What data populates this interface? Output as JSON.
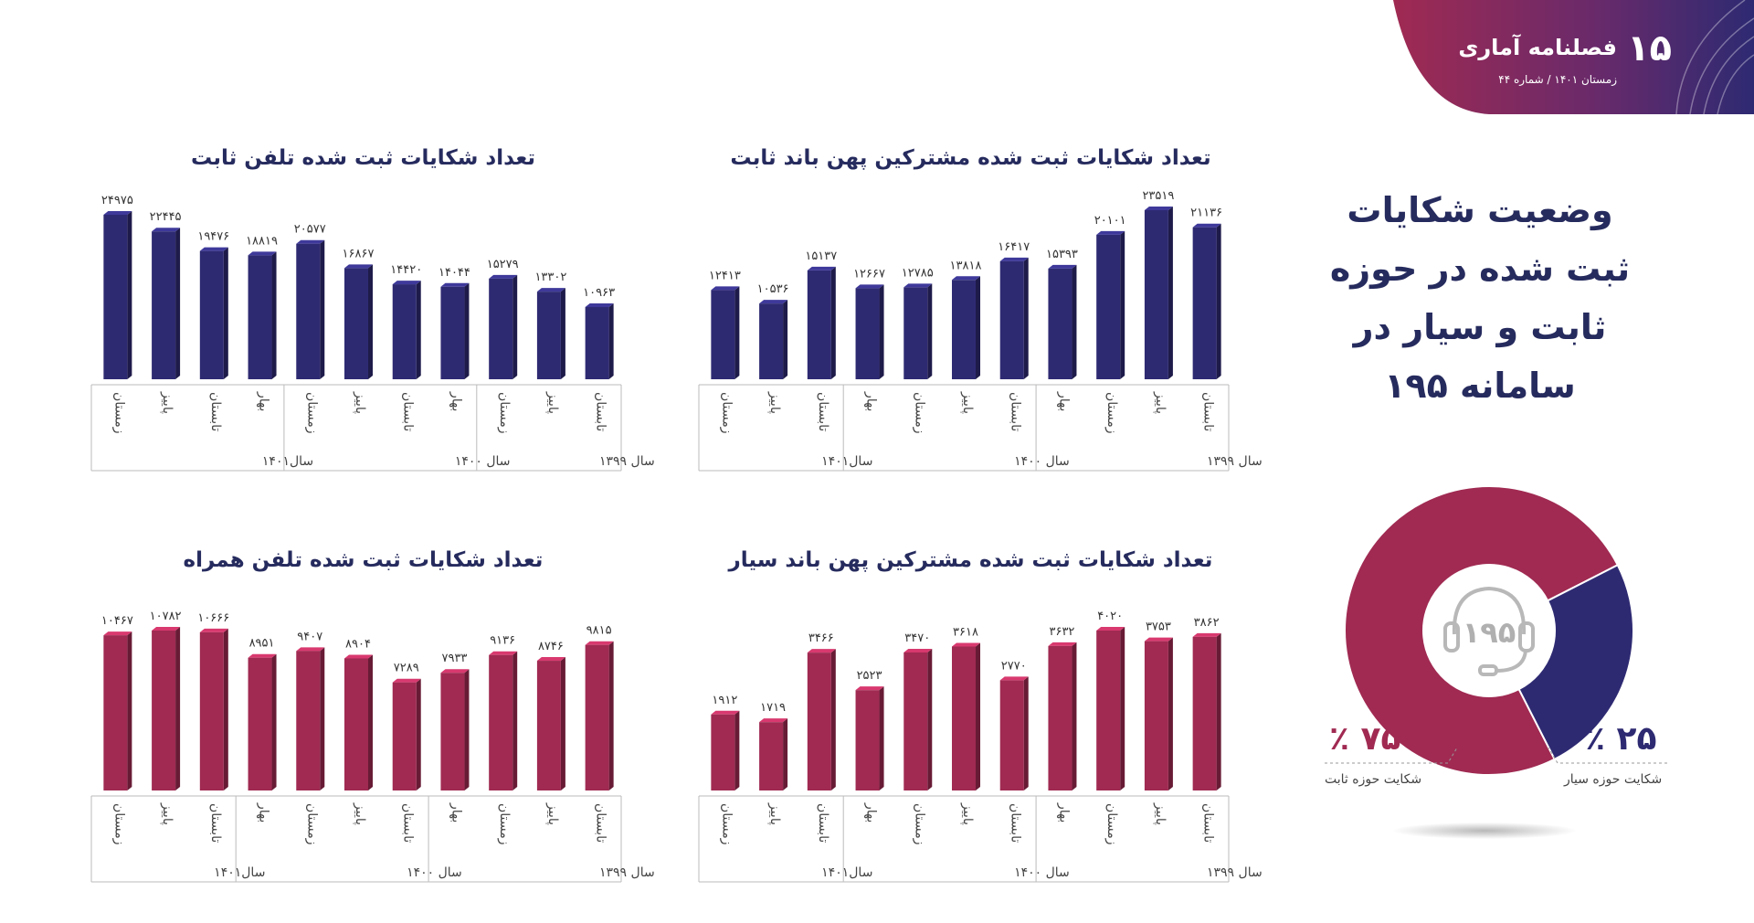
{
  "header": {
    "page_number": "۱۵",
    "publication": "فصلنامه آماری",
    "issue": "زمستان ۱۴۰۱ / شماره ۴۴"
  },
  "side": {
    "title_lines": [
      "وضعیت شکایات",
      "ثبت شده در حوزه",
      "ثابت و سیار در",
      "سامانه ۱۹۵"
    ],
    "fixed_percent": "۷۵ ٪",
    "fixed_label": "شکایت حوزه ثابت",
    "mobile_percent": "۲۵ ٪",
    "mobile_label": "شکایت حوزه سیار",
    "center_label": "۱۹۵"
  },
  "colors": {
    "navy": "#2e2a72",
    "crimson": "#a02a52",
    "title": "#262b5e"
  },
  "chart_data": [
    {
      "type": "bar",
      "title": "تعداد شکایات ثبت شده تلفن ثابت",
      "categories": [
        "تابستان",
        "پاییز",
        "زمستان",
        "بهار",
        "تابستان",
        "پاییز",
        "زمستان",
        "بهار",
        "تابستان",
        "پاییز",
        "زمستان"
      ],
      "values": [
        10963,
        13302,
        15279,
        14044,
        14420,
        16867,
        20577,
        18819,
        19476,
        22445,
        24975
      ],
      "value_labels": [
        "۱۰۹۶۳",
        "۱۳۳۰۲",
        "۱۵۲۷۹",
        "۱۴۰۴۴",
        "۱۴۴۲۰",
        "۱۶۸۶۷",
        "۲۰۵۷۷",
        "۱۸۸۱۹",
        "۱۹۴۷۶",
        "۲۲۴۴۵",
        "۲۴۹۷۵"
      ],
      "groups": [
        {
          "label": "سال ۱۳۹۹",
          "count": 3
        },
        {
          "label": "سال ۱۴۰۰",
          "count": 4
        },
        {
          "label": "سال۱۴۰۱",
          "count": 4
        }
      ],
      "ylim": [
        0,
        24975
      ],
      "color": "#2e2a72"
    },
    {
      "type": "bar",
      "title": "تعداد شکایات ثبت شده مشترکین پهن باند ثابت",
      "categories": [
        "تابستان",
        "پاییز",
        "زمستان",
        "بهار",
        "تابستان",
        "پاییز",
        "زمستان",
        "بهار",
        "تابستان",
        "پاییز",
        "زمستان"
      ],
      "values": [
        21136,
        23519,
        20101,
        15393,
        16417,
        13818,
        12785,
        12667,
        15137,
        10536,
        12413
      ],
      "value_labels": [
        "۲۱۱۳۶",
        "۲۳۵۱۹",
        "۲۰۱۰۱",
        "۱۵۳۹۳",
        "۱۶۴۱۷",
        "۱۳۸۱۸",
        "۱۲۷۸۵",
        "۱۲۶۶۷",
        "۱۵۱۳۷",
        "۱۰۵۳۶",
        "۱۲۴۱۳"
      ],
      "groups": [
        {
          "label": "سال ۱۳۹۹",
          "count": 4
        },
        {
          "label": "سال ۱۴۰۰",
          "count": 4
        },
        {
          "label": "سال۱۴۰۱",
          "count": 3
        }
      ],
      "ylim": [
        0,
        23519
      ],
      "color": "#2e2a72"
    },
    {
      "type": "bar",
      "title": "تعداد شکایات ثبت شده تلفن همراه",
      "categories": [
        "تابستان",
        "پاییز",
        "زمستان",
        "بهار",
        "تابستان",
        "پاییز",
        "زمستان",
        "بهار",
        "تابستان",
        "پاییز",
        "زمستان"
      ],
      "values": [
        9815,
        8746,
        9136,
        7933,
        7289,
        8904,
        9407,
        8951,
        10666,
        10782,
        10467
      ],
      "value_labels": [
        "۹۸۱۵",
        "۸۷۴۶",
        "۹۱۳۶",
        "۷۹۳۳",
        "۷۲۸۹",
        "۸۹۰۴",
        "۹۴۰۷",
        "۸۹۵۱",
        "۱۰۶۶۶",
        "۱۰۷۸۲",
        "۱۰۴۶۷"
      ],
      "groups": [
        {
          "label": "سال ۱۳۹۹",
          "count": 4
        },
        {
          "label": "سال ۱۴۰۰",
          "count": 4
        },
        {
          "label": "سال۱۴۰۱",
          "count": 3
        }
      ],
      "ylim": [
        0,
        10782
      ],
      "color": "#a02a52"
    },
    {
      "type": "bar",
      "title": "تعداد شکایات ثبت شده مشترکین پهن باند سیار",
      "categories": [
        "تابستان",
        "پاییز",
        "زمستان",
        "بهار",
        "تابستان",
        "پاییز",
        "زمستان",
        "بهار",
        "تابستان",
        "پاییز",
        "زمستان"
      ],
      "values": [
        3862,
        3753,
        4020,
        3632,
        2770,
        3618,
        3470,
        2523,
        3466,
        1719,
        1912
      ],
      "value_labels": [
        "۳۸۶۲",
        "۳۷۵۳",
        "۴۰۲۰",
        "۳۶۳۲",
        "۲۷۷۰",
        "۳۶۱۸",
        "۳۴۷۰",
        "۲۵۲۳",
        "۳۴۶۶",
        "۱۷۱۹",
        "۱۹۱۲"
      ],
      "groups": [
        {
          "label": "سال ۱۳۹۹",
          "count": 4
        },
        {
          "label": "سال ۱۴۰۰",
          "count": 4
        },
        {
          "label": "سال۱۴۰۱",
          "count": 3
        }
      ],
      "ylim": [
        0,
        4020
      ],
      "color": "#a02a52"
    },
    {
      "type": "pie",
      "categories": [
        "شکایت حوزه ثابت",
        "شکایت حوزه سیار"
      ],
      "values": [
        75,
        25
      ],
      "colors": [
        "#a02a52",
        "#2e2a72"
      ]
    }
  ]
}
